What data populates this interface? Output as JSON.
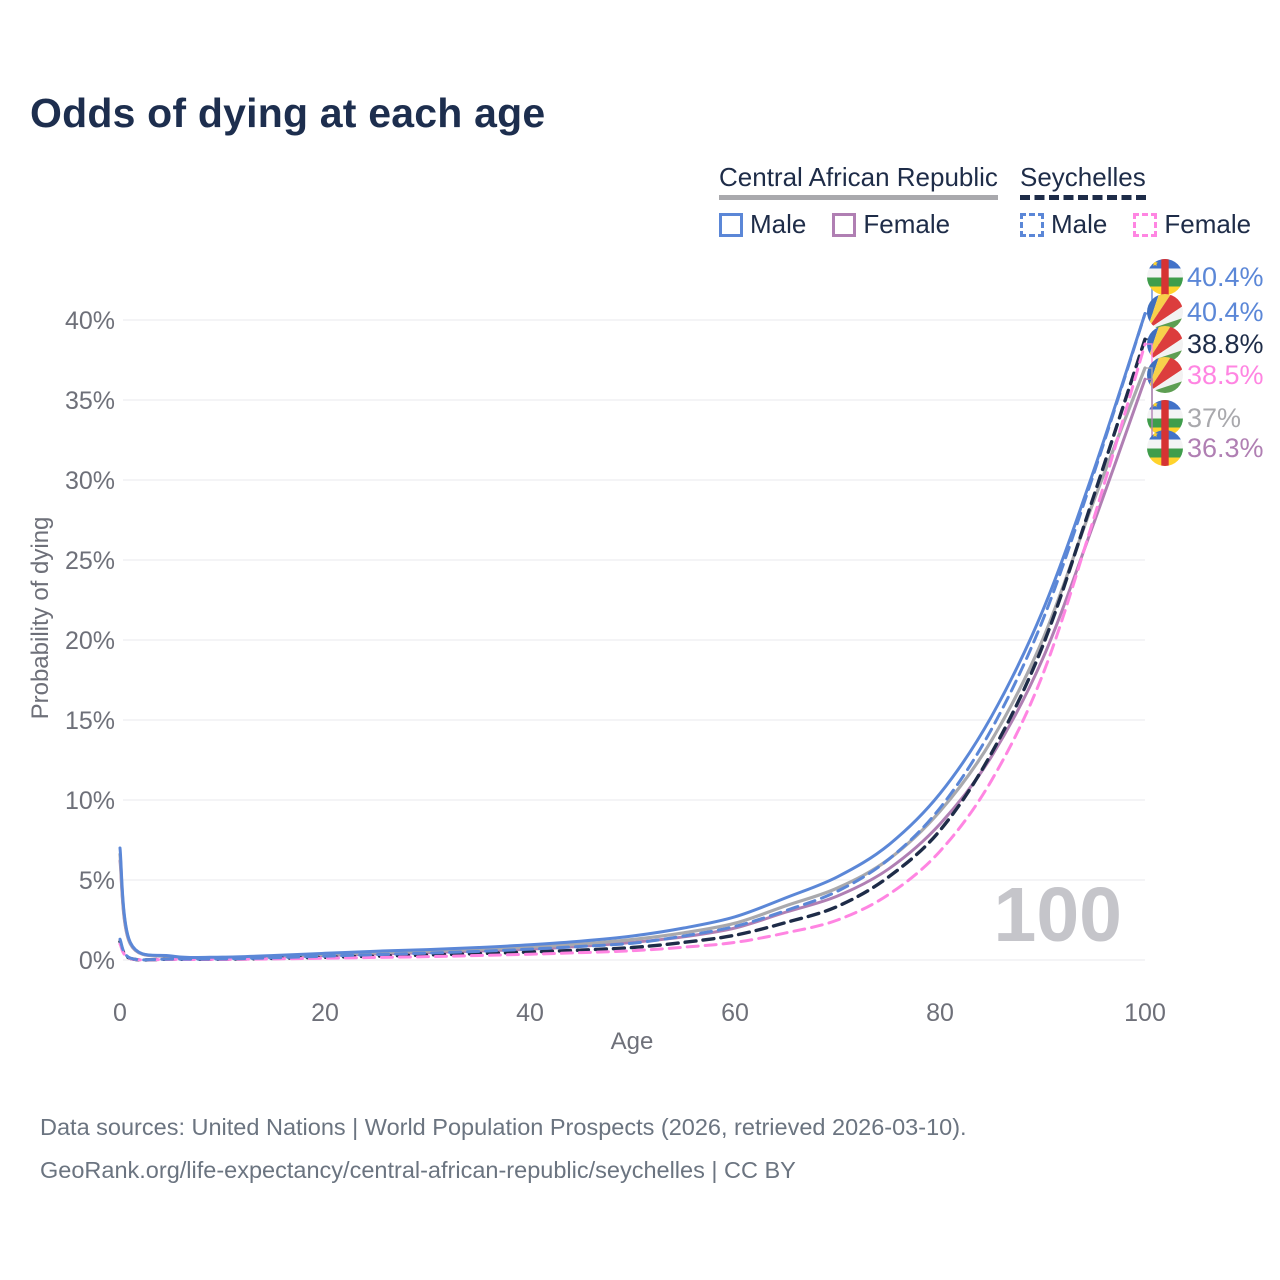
{
  "title": "Odds of dying at each age",
  "legend": {
    "groups": [
      {
        "label": "Central African Republic",
        "underline_style": "solid",
        "underline_color": "#a9a9ad",
        "items": [
          {
            "label": "Male",
            "color": "#5b87d7",
            "dashed": false
          },
          {
            "label": "Female",
            "color": "#b07fb3",
            "dashed": false
          }
        ]
      },
      {
        "label": "Seychelles",
        "underline_style": "dashed",
        "underline_color": "#1e2c48",
        "items": [
          {
            "label": "Male",
            "color": "#5b87d7",
            "dashed": true
          },
          {
            "label": "Female",
            "color": "#ff85e2",
            "dashed": true
          }
        ]
      }
    ]
  },
  "watermark": "100",
  "footer": {
    "line1": "Data sources: United Nations | World Population Prospects (2026, retrieved 2026-03-10).",
    "line2": "GeoRank.org/life-expectancy/central-african-republic/seychelles | CC BY"
  },
  "colors": {
    "title_text": "#1d2e4e",
    "tick_text": "#6e7079",
    "gridline": "#ededf0",
    "watermark": "#c5c5ca",
    "footer_text": "#6b7480"
  },
  "chart_data": {
    "type": "line",
    "title": "Odds of dying at each age",
    "xlabel": "Age",
    "ylabel": "Probability of dying",
    "x_ticks": [
      0,
      20,
      40,
      60,
      80,
      100
    ],
    "y_ticks_percent": [
      0,
      5,
      10,
      15,
      20,
      25,
      30,
      35,
      40
    ],
    "xlim": [
      0,
      100
    ],
    "ylim_percent": [
      0,
      42
    ],
    "grid": "horizontal-only",
    "legend_position": "top-right",
    "x_ages": [
      0,
      1,
      5,
      10,
      15,
      20,
      25,
      30,
      35,
      40,
      45,
      50,
      55,
      60,
      65,
      70,
      75,
      80,
      85,
      90,
      95,
      100
    ],
    "series": [
      {
        "name": "Central African Republic — Female",
        "flag": "car",
        "color": "#b07fb3",
        "dashed": false,
        "width": 3,
        "end_label": "36.3%",
        "end_value_percent": 36.3,
        "values_percent": [
          6.2,
          1.0,
          0.2,
          0.13,
          0.2,
          0.29,
          0.38,
          0.46,
          0.56,
          0.68,
          0.86,
          1.1,
          1.45,
          2.0,
          3.0,
          4.0,
          5.7,
          8.5,
          12.7,
          18.8,
          27.3,
          36.3
        ]
      },
      {
        "name": "Central African Republic — Both sexes",
        "flag": "car",
        "color": "#a9a9ad",
        "dashed": false,
        "width": 3.2,
        "end_label": "37%",
        "end_value_percent": 37.0,
        "values_percent": [
          6.6,
          1.05,
          0.22,
          0.15,
          0.24,
          0.35,
          0.46,
          0.55,
          0.66,
          0.8,
          1.0,
          1.28,
          1.7,
          2.3,
          3.4,
          4.5,
          6.3,
          9.3,
          13.7,
          20.0,
          28.7,
          37.0
        ]
      },
      {
        "name": "Seychelles — Both sexes",
        "flag": "sey",
        "color": "#1e2c48",
        "dashed": true,
        "width": 3.4,
        "end_label": "38.8%",
        "end_value_percent": 38.8,
        "values_percent": [
          1.15,
          0.1,
          0.05,
          0.05,
          0.1,
          0.17,
          0.24,
          0.31,
          0.4,
          0.5,
          0.62,
          0.78,
          1.1,
          1.55,
          2.35,
          3.35,
          5.2,
          8.1,
          12.9,
          19.6,
          29.0,
          38.8
        ]
      },
      {
        "name": "Seychelles — Female",
        "flag": "sey",
        "color": "#ff85e2",
        "dashed": true,
        "width": 3,
        "end_label": "38.5%",
        "end_value_percent": 38.5,
        "values_percent": [
          1.0,
          0.09,
          0.04,
          0.04,
          0.07,
          0.11,
          0.16,
          0.21,
          0.28,
          0.36,
          0.46,
          0.58,
          0.8,
          1.1,
          1.7,
          2.5,
          4.1,
          6.8,
          11.2,
          17.8,
          27.6,
          38.5
        ]
      },
      {
        "name": "Seychelles — Male",
        "flag": "sey",
        "color": "#5b87d7",
        "dashed": true,
        "width": 3,
        "end_label": "40.4%",
        "end_value_percent": 40.4,
        "values_percent": [
          1.3,
          0.12,
          0.06,
          0.07,
          0.14,
          0.24,
          0.34,
          0.43,
          0.54,
          0.68,
          0.85,
          1.05,
          1.5,
          2.1,
          3.1,
          4.3,
          6.3,
          9.5,
          14.4,
          21.2,
          30.4,
          40.4
        ]
      },
      {
        "name": "Central African Republic — Male",
        "flag": "car",
        "color": "#5b87d7",
        "dashed": false,
        "width": 3,
        "end_label": "40.4%",
        "end_value_percent": 40.4,
        "values_percent": [
          7.0,
          1.1,
          0.25,
          0.18,
          0.28,
          0.42,
          0.55,
          0.65,
          0.78,
          0.95,
          1.18,
          1.5,
          2.0,
          2.7,
          3.9,
          5.2,
          7.2,
          10.4,
          15.2,
          21.8,
          30.6,
          40.4
        ]
      }
    ],
    "end_label_order_top_to_bottom": [
      "Central African Republic — Male",
      "Seychelles — Male",
      "Seychelles — Both sexes",
      "Seychelles — Female",
      "Central African Republic — Both sexes",
      "Central African Republic — Female"
    ]
  }
}
